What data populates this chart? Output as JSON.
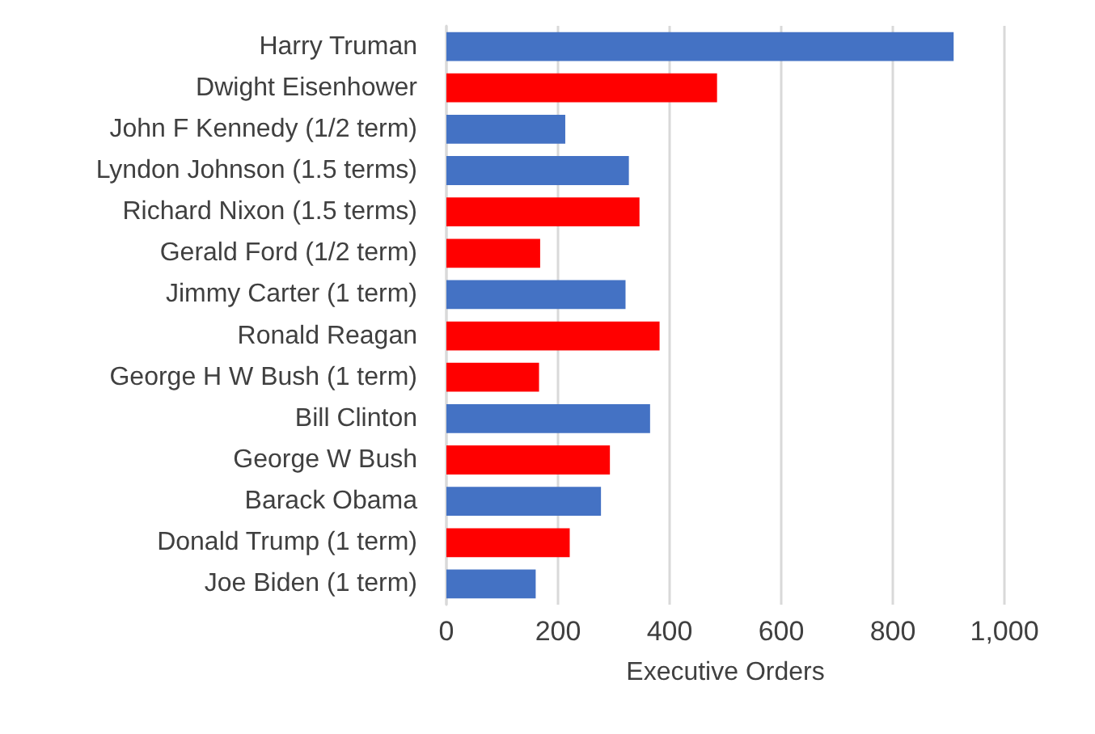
{
  "chart_data": {
    "type": "bar",
    "orientation": "horizontal",
    "xlabel": "Executive Orders",
    "categories": [
      "Harry Truman",
      "Dwight Eisenhower",
      "John F Kennedy (1/2 term)",
      "Lyndon Johnson (1.5 terms)",
      "Richard Nixon (1.5 terms)",
      "Gerald Ford (1/2 term)",
      "Jimmy Carter (1 term)",
      "Ronald Reagan",
      "George H W Bush (1 term)",
      "Bill Clinton",
      "George W Bush",
      "Barack Obama",
      "Donald Trump (1 term)",
      "Joe Biden (1 term)"
    ],
    "values": [
      909,
      485,
      213,
      327,
      346,
      168,
      321,
      382,
      166,
      365,
      293,
      277,
      221,
      160
    ],
    "colors": [
      "#4472c4",
      "#ff0000",
      "#4472c4",
      "#4472c4",
      "#ff0000",
      "#ff0000",
      "#4472c4",
      "#ff0000",
      "#ff0000",
      "#4472c4",
      "#ff0000",
      "#4472c4",
      "#ff0000",
      "#4472c4"
    ],
    "xlim": [
      0,
      1000
    ],
    "xticks": [
      0,
      200,
      400,
      600,
      800,
      {
        "value": 1000,
        "label": "1,000"
      }
    ],
    "grid": "x"
  }
}
